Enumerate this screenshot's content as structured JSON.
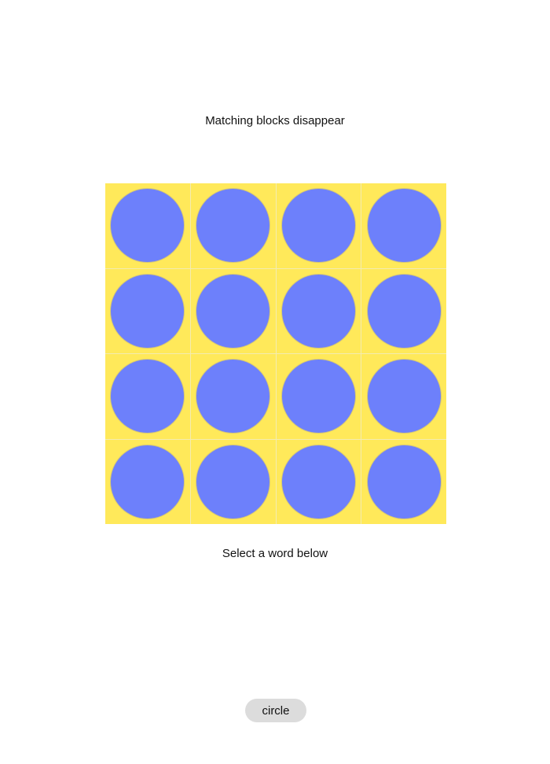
{
  "instructions": {
    "top": "Matching blocks disappear",
    "bottom": "Select a word below"
  },
  "grid": {
    "rows": 4,
    "columns": 4,
    "cell_color": "#ffe95a",
    "cells": [
      {
        "shape": "circle",
        "color": "#6d80fb"
      },
      {
        "shape": "circle",
        "color": "#6d80fb"
      },
      {
        "shape": "circle",
        "color": "#6d80fb"
      },
      {
        "shape": "circle",
        "color": "#6d80fb"
      },
      {
        "shape": "circle",
        "color": "#6d80fb"
      },
      {
        "shape": "circle",
        "color": "#6d80fb"
      },
      {
        "shape": "circle",
        "color": "#6d80fb"
      },
      {
        "shape": "circle",
        "color": "#6d80fb"
      },
      {
        "shape": "circle",
        "color": "#6d80fb"
      },
      {
        "shape": "circle",
        "color": "#6d80fb"
      },
      {
        "shape": "circle",
        "color": "#6d80fb"
      },
      {
        "shape": "circle",
        "color": "#6d80fb"
      },
      {
        "shape": "circle",
        "color": "#6d80fb"
      },
      {
        "shape": "circle",
        "color": "#6d80fb"
      },
      {
        "shape": "circle",
        "color": "#6d80fb"
      },
      {
        "shape": "circle",
        "color": "#6d80fb"
      }
    ]
  },
  "word_options": [
    {
      "label": "circle"
    }
  ]
}
